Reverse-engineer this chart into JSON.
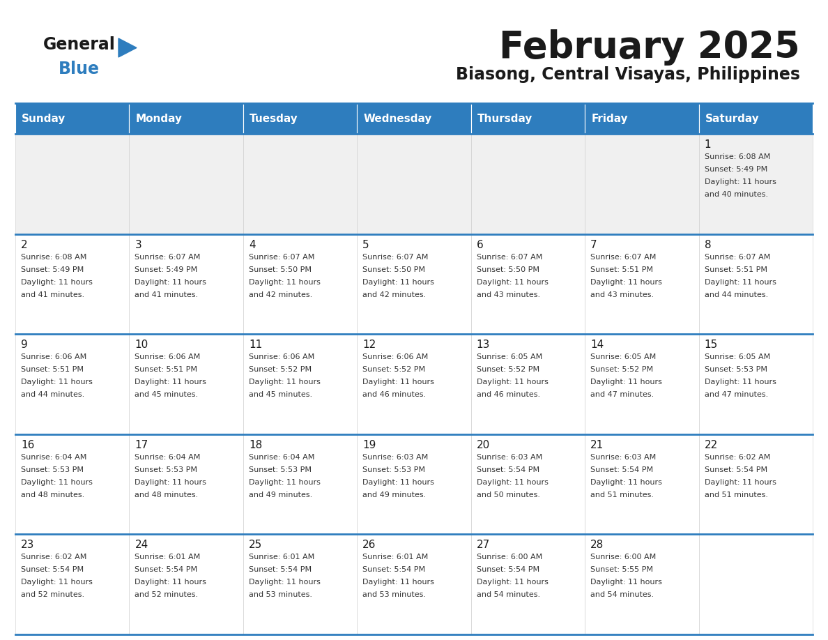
{
  "title": "February 2025",
  "subtitle": "Biasong, Central Visayas, Philippines",
  "header_color": "#2E7DBE",
  "header_text_color": "#FFFFFF",
  "cell_bg_color": "#FFFFFF",
  "alt_row_bg": "#F0F0F0",
  "border_color": "#2E7DBE",
  "day_headers": [
    "Sunday",
    "Monday",
    "Tuesday",
    "Wednesday",
    "Thursday",
    "Friday",
    "Saturday"
  ],
  "logo_general_color": "#1a1a1a",
  "logo_blue_color": "#2E7DBE",
  "calendar_data": [
    [
      null,
      null,
      null,
      null,
      null,
      null,
      {
        "day": 1,
        "sunrise": "6:08 AM",
        "sunset": "5:49 PM",
        "daylight": "11 hours\nand 40 minutes."
      }
    ],
    [
      {
        "day": 2,
        "sunrise": "6:08 AM",
        "sunset": "5:49 PM",
        "daylight": "11 hours\nand 41 minutes."
      },
      {
        "day": 3,
        "sunrise": "6:07 AM",
        "sunset": "5:49 PM",
        "daylight": "11 hours\nand 41 minutes."
      },
      {
        "day": 4,
        "sunrise": "6:07 AM",
        "sunset": "5:50 PM",
        "daylight": "11 hours\nand 42 minutes."
      },
      {
        "day": 5,
        "sunrise": "6:07 AM",
        "sunset": "5:50 PM",
        "daylight": "11 hours\nand 42 minutes."
      },
      {
        "day": 6,
        "sunrise": "6:07 AM",
        "sunset": "5:50 PM",
        "daylight": "11 hours\nand 43 minutes."
      },
      {
        "day": 7,
        "sunrise": "6:07 AM",
        "sunset": "5:51 PM",
        "daylight": "11 hours\nand 43 minutes."
      },
      {
        "day": 8,
        "sunrise": "6:07 AM",
        "sunset": "5:51 PM",
        "daylight": "11 hours\nand 44 minutes."
      }
    ],
    [
      {
        "day": 9,
        "sunrise": "6:06 AM",
        "sunset": "5:51 PM",
        "daylight": "11 hours\nand 44 minutes."
      },
      {
        "day": 10,
        "sunrise": "6:06 AM",
        "sunset": "5:51 PM",
        "daylight": "11 hours\nand 45 minutes."
      },
      {
        "day": 11,
        "sunrise": "6:06 AM",
        "sunset": "5:52 PM",
        "daylight": "11 hours\nand 45 minutes."
      },
      {
        "day": 12,
        "sunrise": "6:06 AM",
        "sunset": "5:52 PM",
        "daylight": "11 hours\nand 46 minutes."
      },
      {
        "day": 13,
        "sunrise": "6:05 AM",
        "sunset": "5:52 PM",
        "daylight": "11 hours\nand 46 minutes."
      },
      {
        "day": 14,
        "sunrise": "6:05 AM",
        "sunset": "5:52 PM",
        "daylight": "11 hours\nand 47 minutes."
      },
      {
        "day": 15,
        "sunrise": "6:05 AM",
        "sunset": "5:53 PM",
        "daylight": "11 hours\nand 47 minutes."
      }
    ],
    [
      {
        "day": 16,
        "sunrise": "6:04 AM",
        "sunset": "5:53 PM",
        "daylight": "11 hours\nand 48 minutes."
      },
      {
        "day": 17,
        "sunrise": "6:04 AM",
        "sunset": "5:53 PM",
        "daylight": "11 hours\nand 48 minutes."
      },
      {
        "day": 18,
        "sunrise": "6:04 AM",
        "sunset": "5:53 PM",
        "daylight": "11 hours\nand 49 minutes."
      },
      {
        "day": 19,
        "sunrise": "6:03 AM",
        "sunset": "5:53 PM",
        "daylight": "11 hours\nand 49 minutes."
      },
      {
        "day": 20,
        "sunrise": "6:03 AM",
        "sunset": "5:54 PM",
        "daylight": "11 hours\nand 50 minutes."
      },
      {
        "day": 21,
        "sunrise": "6:03 AM",
        "sunset": "5:54 PM",
        "daylight": "11 hours\nand 51 minutes."
      },
      {
        "day": 22,
        "sunrise": "6:02 AM",
        "sunset": "5:54 PM",
        "daylight": "11 hours\nand 51 minutes."
      }
    ],
    [
      {
        "day": 23,
        "sunrise": "6:02 AM",
        "sunset": "5:54 PM",
        "daylight": "11 hours\nand 52 minutes."
      },
      {
        "day": 24,
        "sunrise": "6:01 AM",
        "sunset": "5:54 PM",
        "daylight": "11 hours\nand 52 minutes."
      },
      {
        "day": 25,
        "sunrise": "6:01 AM",
        "sunset": "5:54 PM",
        "daylight": "11 hours\nand 53 minutes."
      },
      {
        "day": 26,
        "sunrise": "6:01 AM",
        "sunset": "5:54 PM",
        "daylight": "11 hours\nand 53 minutes."
      },
      {
        "day": 27,
        "sunrise": "6:00 AM",
        "sunset": "5:54 PM",
        "daylight": "11 hours\nand 54 minutes."
      },
      {
        "day": 28,
        "sunrise": "6:00 AM",
        "sunset": "5:55 PM",
        "daylight": "11 hours\nand 54 minutes."
      },
      null
    ]
  ]
}
